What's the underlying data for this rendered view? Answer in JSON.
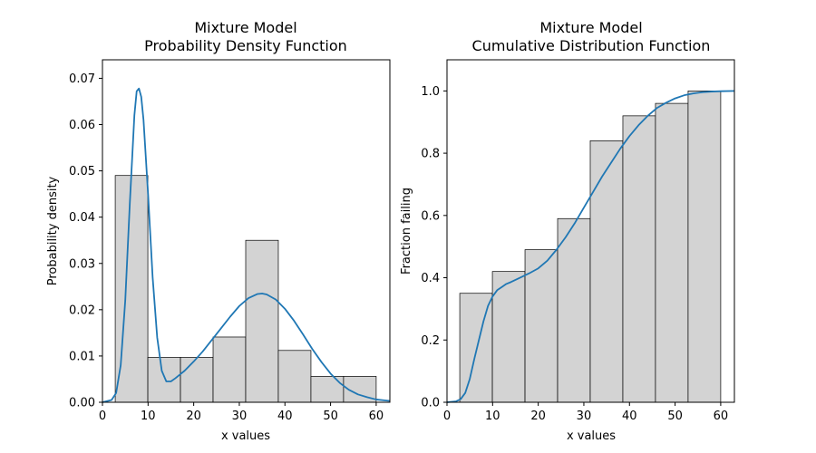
{
  "colors": {
    "bar_fill": "#d3d3d3",
    "bar_edge": "#000000",
    "line": "#1f77b4",
    "axes": "#000000",
    "background": "#ffffff"
  },
  "chart_data": [
    {
      "type": "bar",
      "title_lines": [
        "Mixture Model",
        "Probability Density Function"
      ],
      "xlabel": "x values",
      "ylabel": "Probability density",
      "xlim": [
        0,
        63
      ],
      "ylim": [
        0,
        0.074
      ],
      "xticks": [
        0,
        10,
        20,
        30,
        40,
        50,
        60
      ],
      "yticks": [
        0.0,
        0.01,
        0.02,
        0.03,
        0.04,
        0.05,
        0.06,
        0.07
      ],
      "ytick_labels": [
        "0.00",
        "0.01",
        "0.02",
        "0.03",
        "0.04",
        "0.05",
        "0.06",
        "0.07"
      ],
      "grid": false,
      "histogram": {
        "bin_edges": [
          2.8,
          9.95,
          17.1,
          24.25,
          31.4,
          38.55,
          45.7,
          52.85,
          60.0
        ],
        "values": [
          0.049,
          0.0097,
          0.0097,
          0.0141,
          0.035,
          0.0112,
          0.0056,
          0.0056
        ]
      },
      "curve": {
        "x": [
          0,
          2,
          3,
          4,
          5,
          6,
          7,
          7.5,
          8,
          8.5,
          9,
          10,
          11,
          12,
          13,
          14,
          15,
          16,
          17,
          18,
          20,
          22,
          24,
          26,
          28,
          30,
          32,
          34,
          35,
          36,
          38,
          40,
          42,
          44,
          46,
          48,
          50,
          52,
          54,
          56,
          58,
          60,
          62,
          63
        ],
        "y": [
          0.0,
          0.0005,
          0.002,
          0.008,
          0.022,
          0.043,
          0.062,
          0.0672,
          0.0678,
          0.066,
          0.061,
          0.045,
          0.027,
          0.014,
          0.0068,
          0.0045,
          0.0045,
          0.0052,
          0.006,
          0.0068,
          0.0088,
          0.011,
          0.0135,
          0.016,
          0.0185,
          0.0208,
          0.0225,
          0.0234,
          0.0235,
          0.0233,
          0.0222,
          0.0202,
          0.0176,
          0.0146,
          0.0115,
          0.0087,
          0.0062,
          0.0042,
          0.0027,
          0.0017,
          0.0011,
          0.0006,
          0.0004,
          0.0003
        ]
      }
    },
    {
      "type": "bar",
      "title_lines": [
        "Mixture Model",
        "Cumulative Distribution Function"
      ],
      "xlabel": "x values",
      "ylabel": "Fraction failing",
      "xlim": [
        0,
        63
      ],
      "ylim": [
        0,
        1.1
      ],
      "xticks": [
        0,
        10,
        20,
        30,
        40,
        50,
        60
      ],
      "yticks": [
        0.0,
        0.2,
        0.4,
        0.6,
        0.8,
        1.0
      ],
      "ytick_labels": [
        "0.0",
        "0.2",
        "0.4",
        "0.6",
        "0.8",
        "1.0"
      ],
      "grid": false,
      "histogram": {
        "bin_edges": [
          2.8,
          9.95,
          17.1,
          24.25,
          31.4,
          38.55,
          45.7,
          52.85,
          60.0
        ],
        "values": [
          0.35,
          0.42,
          0.49,
          0.59,
          0.84,
          0.92,
          0.96,
          1.0
        ]
      },
      "curve": {
        "x": [
          0,
          2,
          3,
          4,
          5,
          6,
          7,
          8,
          9,
          10,
          11,
          12,
          13,
          14,
          16,
          18,
          20,
          22,
          24,
          26,
          28,
          30,
          32,
          34,
          36,
          38,
          40,
          42,
          44,
          46,
          48,
          50,
          52,
          54,
          56,
          58,
          60,
          63
        ],
        "y": [
          0.0,
          0.003,
          0.01,
          0.03,
          0.075,
          0.14,
          0.2,
          0.26,
          0.31,
          0.34,
          0.36,
          0.37,
          0.38,
          0.386,
          0.4,
          0.414,
          0.43,
          0.455,
          0.49,
          0.53,
          0.575,
          0.625,
          0.675,
          0.725,
          0.77,
          0.815,
          0.855,
          0.89,
          0.92,
          0.945,
          0.962,
          0.976,
          0.986,
          0.992,
          0.996,
          0.998,
          0.999,
          1.0
        ]
      }
    }
  ]
}
